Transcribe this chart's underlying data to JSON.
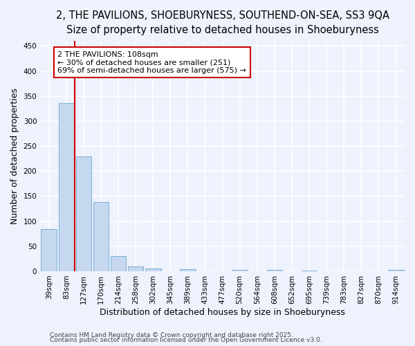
{
  "title_line1": "2, THE PAVILIONS, SHOEBURYNESS, SOUTHEND-ON-SEA, SS3 9QA",
  "title_line2": "Size of property relative to detached houses in Shoeburyness",
  "xlabel": "Distribution of detached houses by size in Shoeburyness",
  "ylabel": "Number of detached properties",
  "bar_labels": [
    "39sqm",
    "83sqm",
    "127sqm",
    "170sqm",
    "214sqm",
    "258sqm",
    "302sqm",
    "345sqm",
    "389sqm",
    "433sqm",
    "477sqm",
    "520sqm",
    "564sqm",
    "608sqm",
    "652sqm",
    "695sqm",
    "739sqm",
    "783sqm",
    "827sqm",
    "870sqm",
    "914sqm"
  ],
  "bar_values": [
    84,
    336,
    229,
    138,
    30,
    9,
    5,
    0,
    4,
    0,
    0,
    3,
    0,
    3,
    0,
    2,
    0,
    0,
    0,
    0,
    3
  ],
  "bar_color": "#c5d8f0",
  "bar_edge_color": "#7aafd4",
  "annotation_text": "2 THE PAVILIONS: 108sqm\n← 30% of detached houses are smaller (251)\n69% of semi-detached houses are larger (575) →",
  "vline_x": 1.5,
  "vline_color": "#cc0000",
  "ylim": [
    0,
    460
  ],
  "yticks": [
    0,
    50,
    100,
    150,
    200,
    250,
    300,
    350,
    400,
    450
  ],
  "annotation_box_color": "#ffffff",
  "annotation_box_edge": "#cc0000",
  "footer_line1": "Contains HM Land Registry data © Crown copyright and database right 2025.",
  "footer_line2": "Contains public sector information licensed under the Open Government Licence v3.0.",
  "background_color": "#eef2fc",
  "grid_color": "#ffffff",
  "title_fontsize": 10.5,
  "subtitle_fontsize": 9.5,
  "axis_label_fontsize": 9,
  "tick_fontsize": 7.5,
  "annotation_fontsize": 8,
  "footer_fontsize": 6.5
}
